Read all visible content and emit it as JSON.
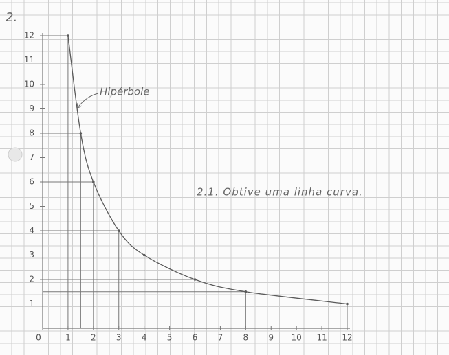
{
  "problem_number": "2.",
  "chart_data": {
    "type": "line",
    "x": [
      1,
      1.5,
      2,
      3,
      4,
      6,
      8,
      12
    ],
    "values": [
      12,
      8,
      6,
      4,
      3,
      2,
      1.5,
      1
    ],
    "color": "#5a5a5a",
    "annotations": [
      "Hipérbole",
      "2.1. Obtive uma linha curva."
    ],
    "xlim": [
      0,
      12
    ],
    "ylim": [
      0,
      12
    ],
    "xticks": [
      0,
      1,
      2,
      3,
      4,
      5,
      6,
      7,
      8,
      9,
      10,
      11,
      12
    ],
    "yticks": [
      1,
      2,
      3,
      4,
      5,
      6,
      7,
      8,
      9,
      10,
      11,
      12
    ]
  }
}
